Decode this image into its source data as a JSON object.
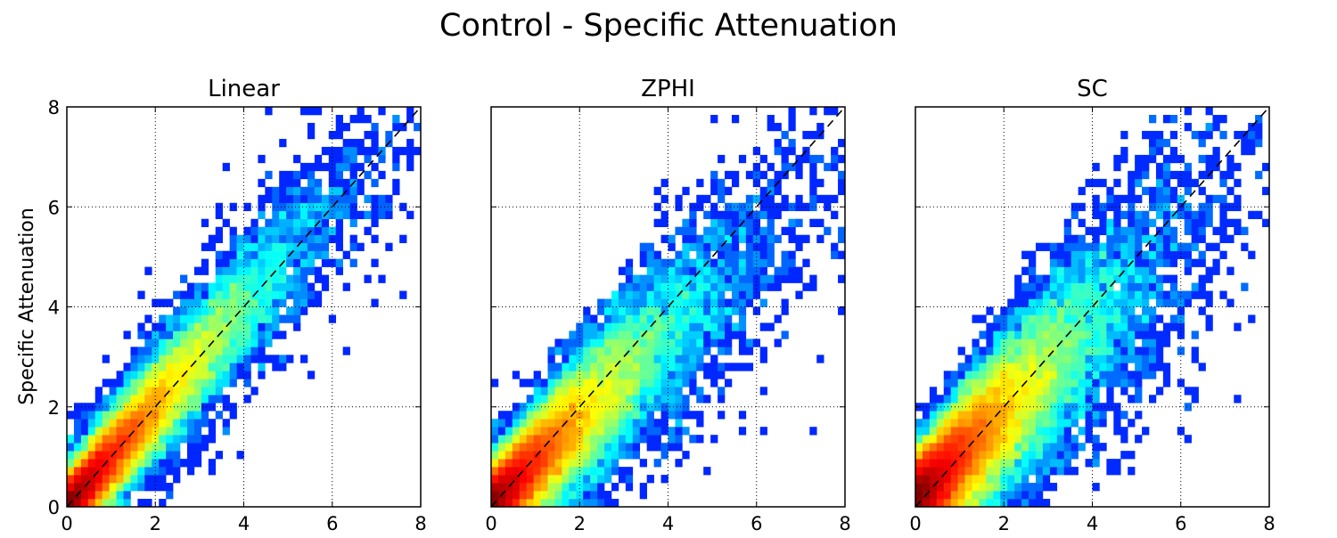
{
  "figure": {
    "title": "Control - Specific Attenuation",
    "ylabel": "Specific Attenuation"
  },
  "colormap": "jet",
  "chart_data": [
    {
      "type": "heatmap",
      "title": "Linear",
      "xlim": [
        0,
        8
      ],
      "ylim": [
        0,
        8
      ],
      "xticks": [
        "0",
        "2",
        "4",
        "6",
        "8"
      ],
      "yticks": [
        "0",
        "2",
        "4",
        "6",
        "8"
      ],
      "grid": true,
      "reference_line": "y = x (dashed)",
      "distribution": {
        "slope": 1.0,
        "intercept": 0.0,
        "spread": 0.28,
        "spread_growth": 0.09,
        "outlier_rate": 0.05,
        "seed": 11
      }
    },
    {
      "type": "heatmap",
      "title": "ZPHI",
      "xlim": [
        0,
        8
      ],
      "ylim": [
        0,
        8
      ],
      "xticks": [
        "0",
        "2",
        "4",
        "6",
        "8"
      ],
      "yticks": [
        "",
        "",
        "",
        "",
        ""
      ],
      "grid": true,
      "reference_line": "y = x (dashed)",
      "distribution": {
        "slope": 0.85,
        "intercept": 0.05,
        "spread": 0.32,
        "spread_growth": 0.12,
        "outlier_rate": 0.12,
        "seed": 23
      }
    },
    {
      "type": "heatmap",
      "title": "SC",
      "xlim": [
        0,
        8
      ],
      "ylim": [
        0,
        8
      ],
      "xticks": [
        "0",
        "2",
        "4",
        "6",
        "8"
      ],
      "yticks": [
        "",
        "",
        "",
        "",
        ""
      ],
      "grid": true,
      "reference_line": "y = x (dashed)",
      "distribution": {
        "slope": 0.88,
        "intercept": 0.15,
        "spread": 0.38,
        "spread_growth": 0.14,
        "outlier_rate": 0.18,
        "seed": 37
      }
    }
  ]
}
